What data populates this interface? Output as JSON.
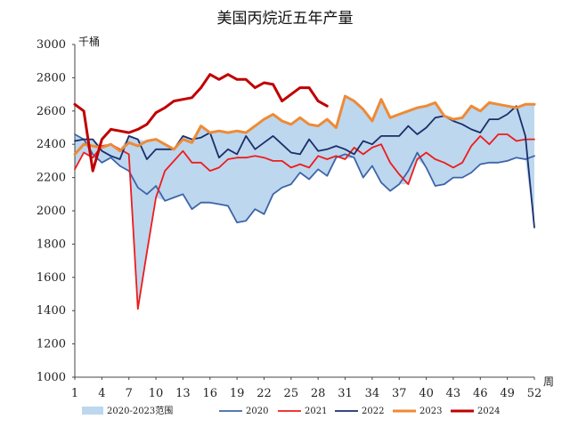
{
  "chart_data": {
    "type": "line",
    "title": "美国丙烷近五年产量",
    "ylabel": "千桶",
    "xlabel": "周",
    "ylim": [
      1000,
      3000
    ],
    "xlim": [
      1,
      52
    ],
    "yticks": [
      1000,
      1200,
      1400,
      1600,
      1800,
      2000,
      2200,
      2400,
      2600,
      2800,
      3000
    ],
    "xticks": [
      1,
      4,
      7,
      10,
      13,
      16,
      19,
      22,
      25,
      28,
      31,
      34,
      37,
      40,
      43,
      46,
      49,
      52
    ],
    "grid": false,
    "legend_position": "bottom",
    "range_band": {
      "name": "2020-2023范围",
      "color": "#bdd7ee"
    },
    "series": [
      {
        "name": "2020",
        "color": "#3e64a8",
        "values": [
          2460,
          2430,
          2340,
          2290,
          2320,
          2270,
          2240,
          2140,
          2100,
          2150,
          2060,
          2080,
          2100,
          2010,
          2050,
          2050,
          2040,
          2030,
          1930,
          1940,
          2010,
          1980,
          2100,
          2140,
          2160,
          2230,
          2190,
          2250,
          2210,
          2320,
          2340,
          2320,
          2200,
          2270,
          2170,
          2120,
          2160,
          2240,
          2350,
          2260,
          2150,
          2160,
          2200,
          2200,
          2230,
          2280,
          2290,
          2290,
          2300,
          2320,
          2310,
          2330
        ]
      },
      {
        "name": "2021",
        "color": "#ee1c1c",
        "values": [
          2250,
          2350,
          2320,
          2390,
          2400,
          2370,
          2340,
          1410,
          1750,
          2080,
          2240,
          2300,
          2360,
          2290,
          2290,
          2240,
          2260,
          2310,
          2320,
          2320,
          2330,
          2320,
          2300,
          2300,
          2260,
          2280,
          2260,
          2330,
          2310,
          2330,
          2310,
          2380,
          2340,
          2380,
          2400,
          2290,
          2220,
          2160,
          2310,
          2350,
          2310,
          2290,
          2260,
          2290,
          2390,
          2450,
          2400,
          2460,
          2460,
          2420,
          2430,
          2430
        ]
      },
      {
        "name": "2022",
        "color": "#1b2e6b",
        "values": [
          2420,
          2430,
          2430,
          2360,
          2330,
          2310,
          2450,
          2430,
          2310,
          2370,
          2370,
          2370,
          2450,
          2430,
          2440,
          2470,
          2320,
          2370,
          2340,
          2450,
          2370,
          2410,
          2450,
          2400,
          2350,
          2340,
          2430,
          2360,
          2370,
          2390,
          2370,
          2340,
          2420,
          2400,
          2450,
          2450,
          2450,
          2510,
          2460,
          2500,
          2560,
          2570,
          2540,
          2520,
          2490,
          2470,
          2550,
          2550,
          2580,
          2630,
          2450,
          1900
        ]
      },
      {
        "name": "2023",
        "color": "#ee8a37",
        "values": [
          2340,
          2400,
          2390,
          2380,
          2400,
          2360,
          2410,
          2390,
          2420,
          2430,
          2400,
          2370,
          2430,
          2410,
          2510,
          2470,
          2480,
          2470,
          2480,
          2470,
          2510,
          2550,
          2580,
          2540,
          2520,
          2560,
          2520,
          2510,
          2550,
          2500,
          2690,
          2660,
          2610,
          2540,
          2670,
          2560,
          2580,
          2600,
          2620,
          2630,
          2650,
          2570,
          2550,
          2560,
          2630,
          2600,
          2650,
          2640,
          2630,
          2620,
          2640,
          2640
        ]
      },
      {
        "name": "2024",
        "color": "#c00000",
        "values": [
          2640,
          2600,
          2240,
          2430,
          2490,
          2480,
          2470,
          2490,
          2520,
          2590,
          2620,
          2660,
          2670,
          2680,
          2740,
          2820,
          2790,
          2820,
          2790,
          2790,
          2740,
          2770,
          2760,
          2660,
          2700,
          2740,
          2740,
          2660,
          2630
        ]
      }
    ]
  }
}
